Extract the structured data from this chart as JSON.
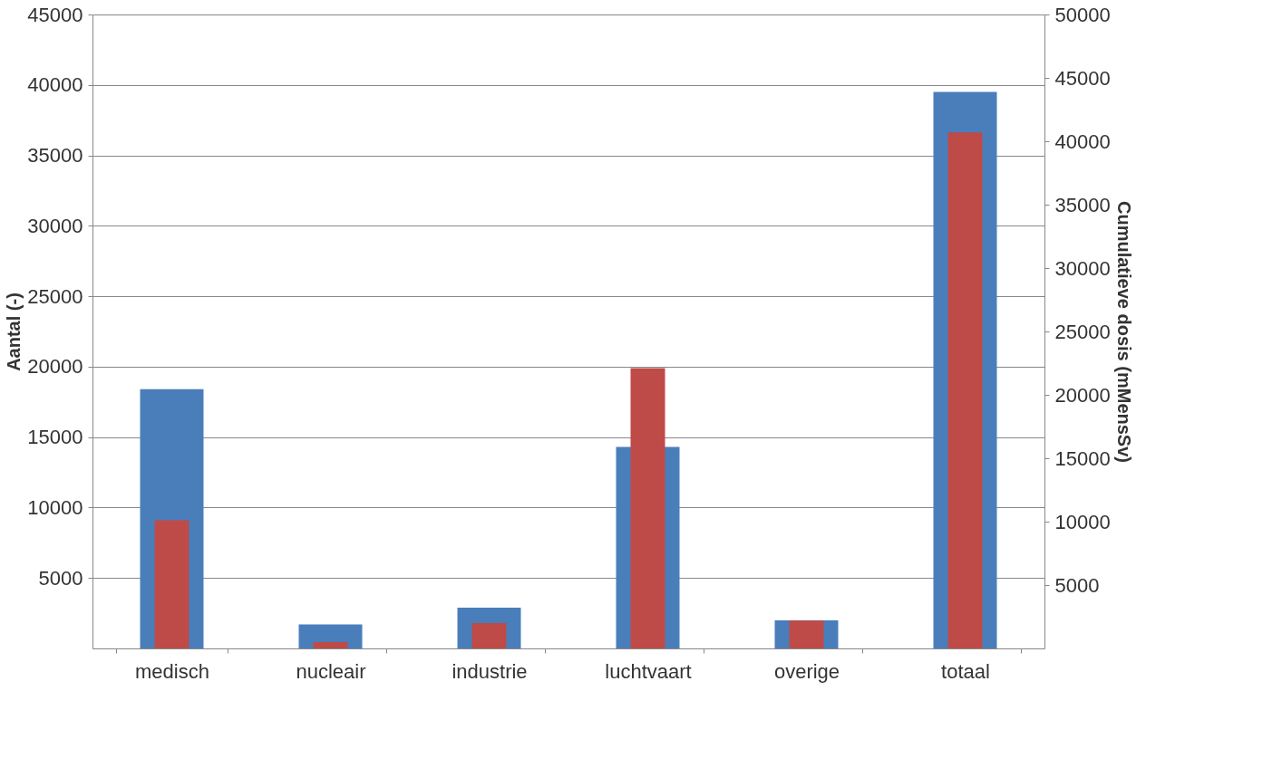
{
  "chart_data": {
    "type": "bar",
    "ylabel": "Aantal (-)",
    "y2label": "Cumulatieve dosis (mMensSv)",
    "categories": [
      "medisch",
      "nucleair",
      "industrie",
      "luchtvaart",
      "overige",
      "totaal"
    ],
    "series": [
      {
        "color": "#4a7ebb",
        "values": [
          18400,
          1700,
          2900,
          14300,
          2000,
          39500
        ]
      },
      {
        "color": "#be4b48",
        "axis": "y2",
        "values": [
          10100,
          500,
          2000,
          22100,
          2200,
          40700
        ]
      }
    ],
    "ylim": [
      0,
      45000
    ],
    "yticks": [
      5000,
      10000,
      15000,
      20000,
      25000,
      30000,
      35000,
      40000,
      45000
    ],
    "y2lim": [
      0,
      50000
    ],
    "y2ticks": [
      5000,
      10000,
      15000,
      20000,
      25000,
      30000,
      35000,
      40000,
      45000,
      50000
    ],
    "grid": "y"
  }
}
